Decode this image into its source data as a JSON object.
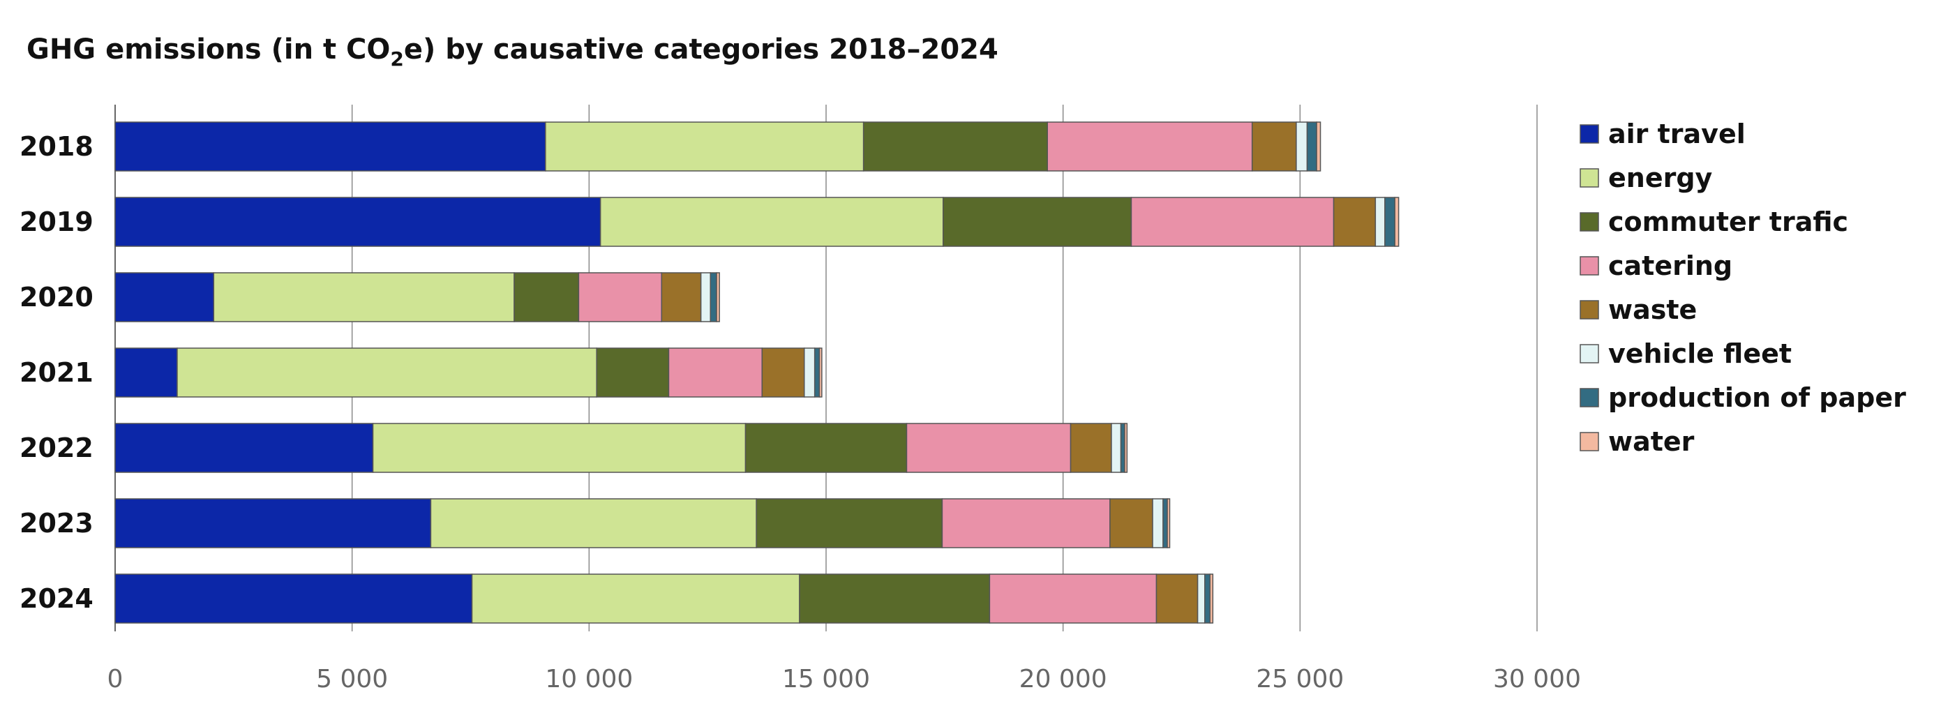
{
  "chart_data": {
    "type": "bar",
    "orientation": "horizontal",
    "stacked": true,
    "title": {
      "prefix": "GHG emissions (in t CO",
      "subscript": "2",
      "suffix": "e) by causative categories 2018–2024"
    },
    "xlabel": "",
    "ylabel": "",
    "xlim": [
      0,
      30000
    ],
    "x_ticks": [
      0,
      5000,
      10000,
      15000,
      20000,
      25000,
      30000
    ],
    "x_tick_labels": [
      "0",
      "5 000",
      "10 000",
      "15 000",
      "20 000",
      "25 000",
      "30 000"
    ],
    "grid": true,
    "legend_position": "right",
    "categories": [
      "2018",
      "2019",
      "2020",
      "2021",
      "2022",
      "2023",
      "2024"
    ],
    "series": [
      {
        "name": "air travel",
        "color": "#0c27a8",
        "values": [
          9080,
          10240,
          2080,
          1310,
          5440,
          6660,
          7530
        ]
      },
      {
        "name": "energy",
        "color": "#cfe494",
        "values": [
          6710,
          7230,
          6340,
          8850,
          7860,
          6870,
          6910
        ]
      },
      {
        "name": "commuter trafic",
        "color": "#596a2a",
        "values": [
          3880,
          3970,
          1360,
          1520,
          3400,
          3920,
          4010
        ]
      },
      {
        "name": "catering",
        "color": "#e991a8",
        "values": [
          4320,
          4270,
          1750,
          1970,
          3460,
          3540,
          3520
        ]
      },
      {
        "name": "waste",
        "color": "#9a7129",
        "values": [
          930,
          880,
          830,
          890,
          860,
          900,
          870
        ]
      },
      {
        "name": "vehicle fleet",
        "color": "#e3f4f4",
        "values": [
          230,
          200,
          200,
          220,
          200,
          220,
          150
        ]
      },
      {
        "name": "production of paper",
        "color": "#336c82",
        "values": [
          200,
          210,
          130,
          100,
          80,
          90,
          110
        ]
      },
      {
        "name": "water",
        "color": "#f3b9a0",
        "values": [
          80,
          80,
          60,
          50,
          50,
          50,
          60
        ]
      }
    ]
  }
}
